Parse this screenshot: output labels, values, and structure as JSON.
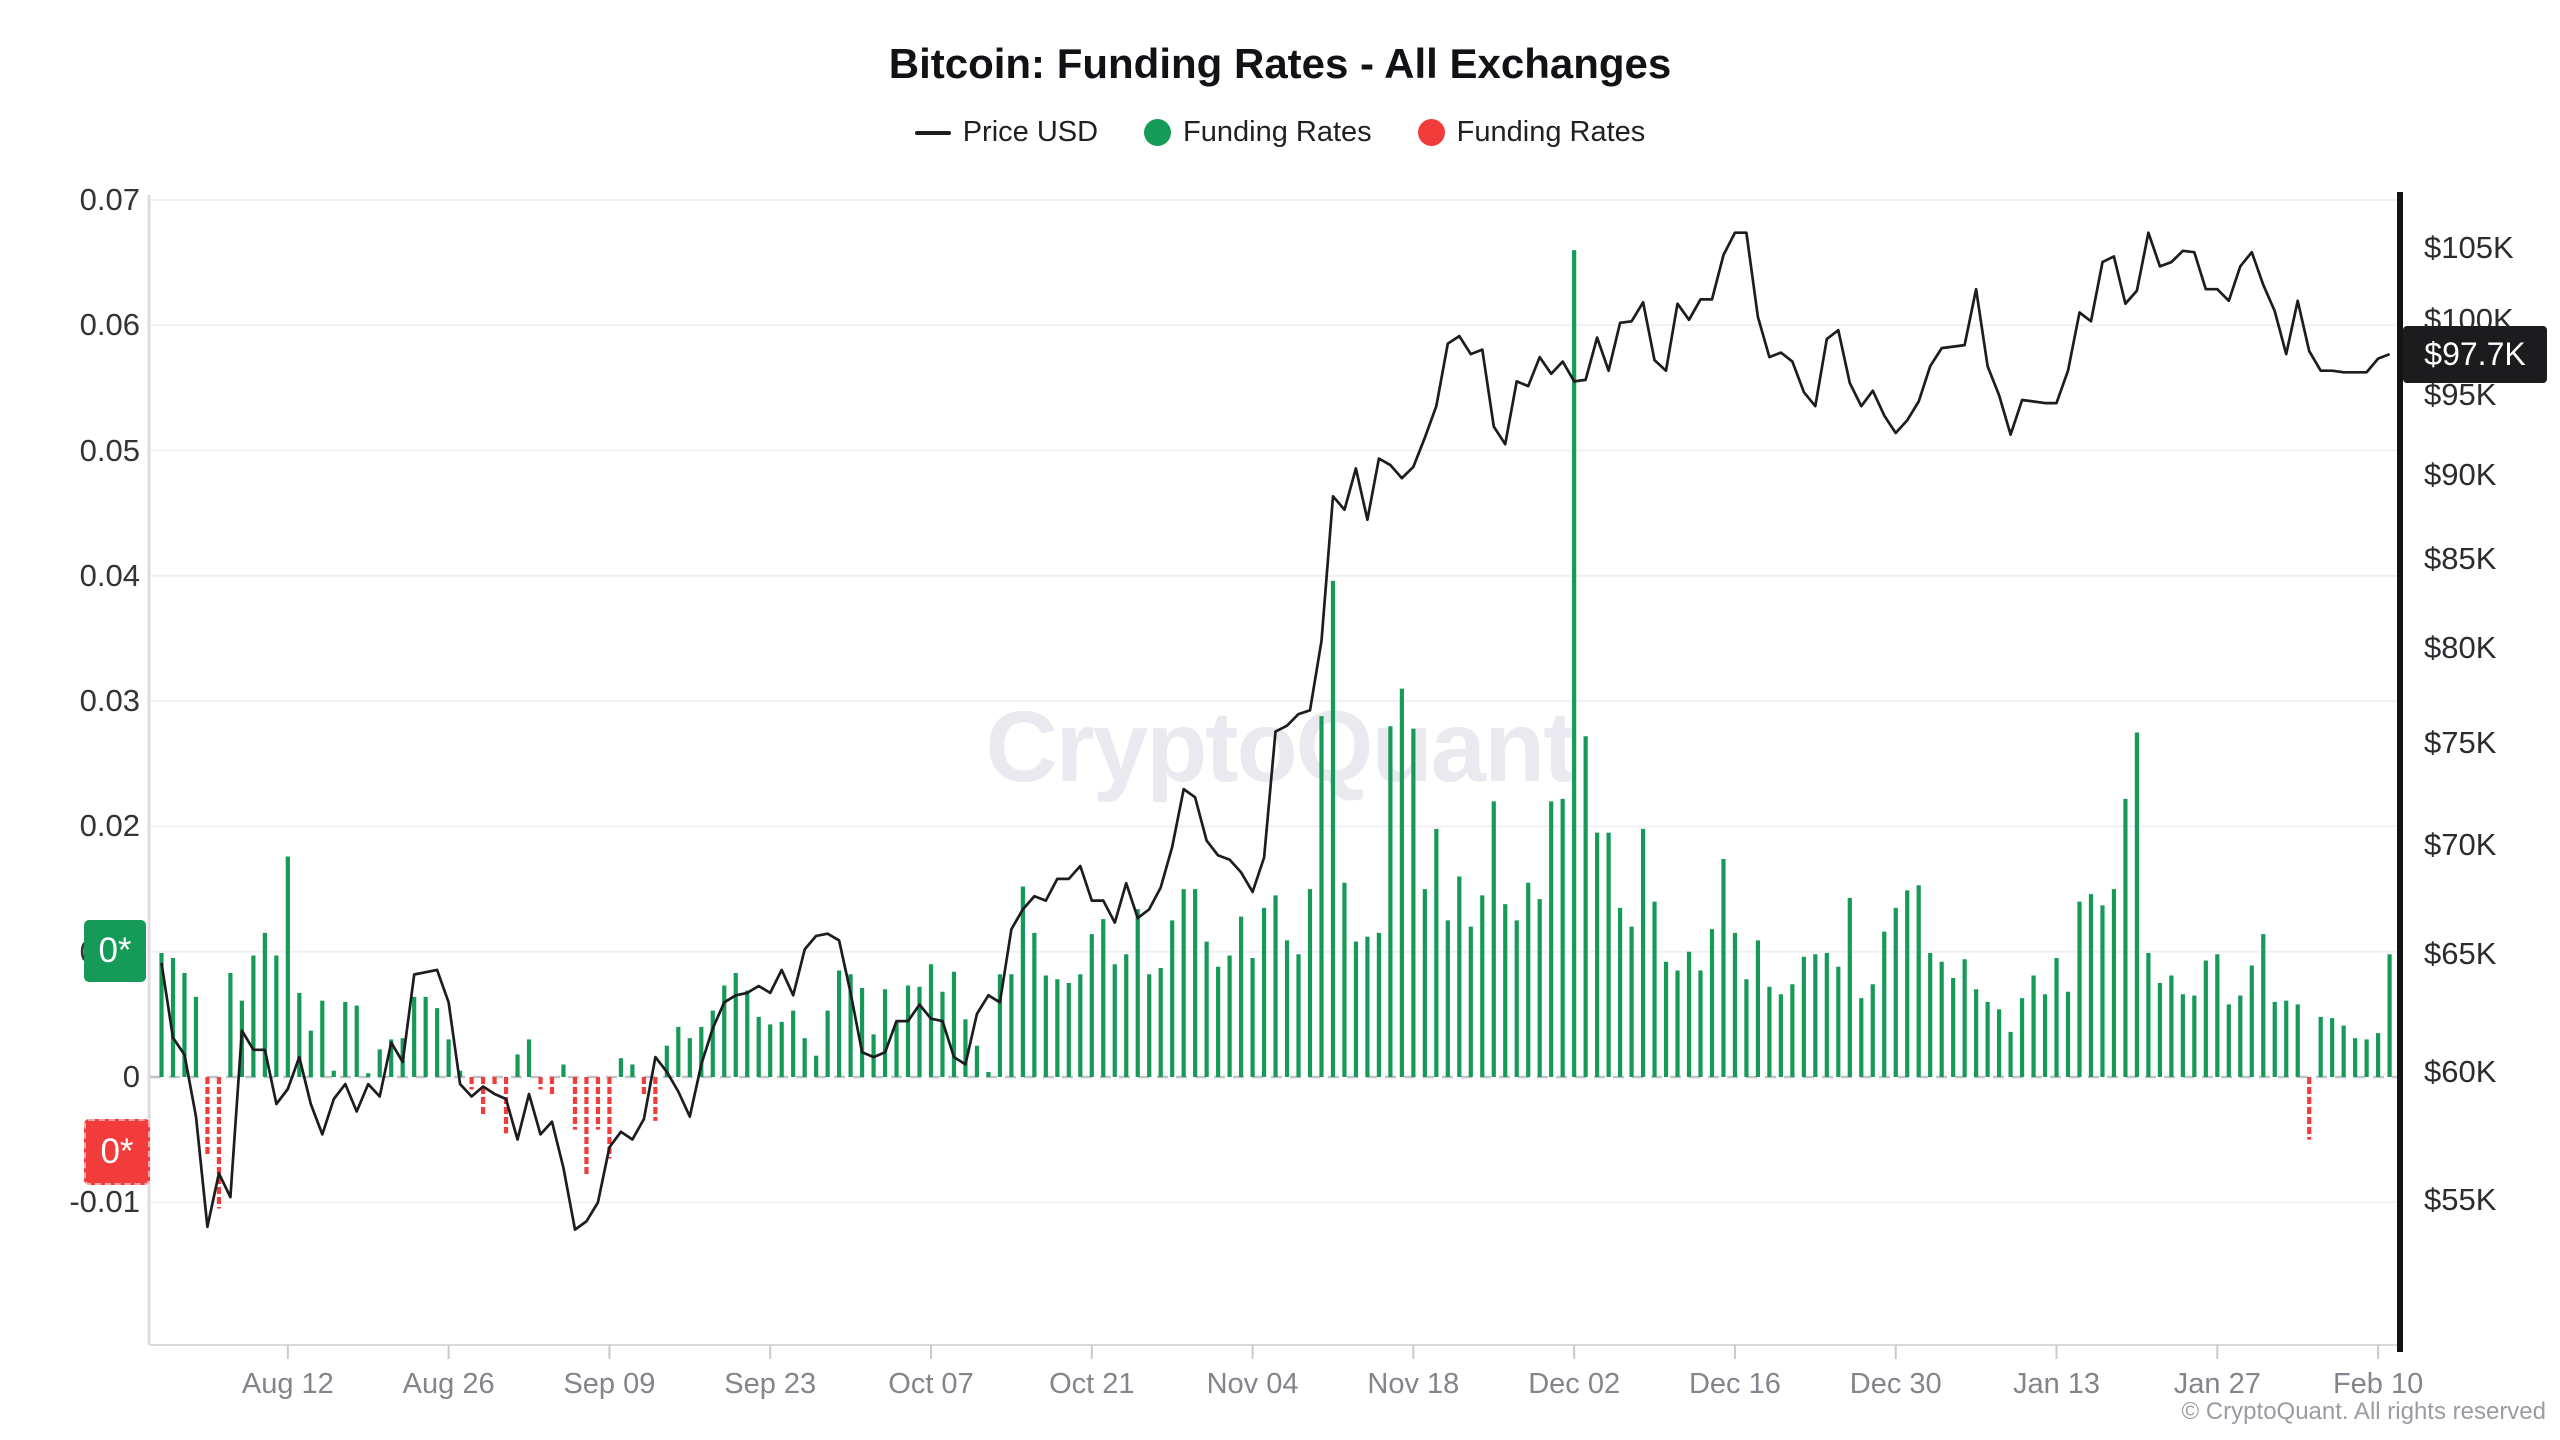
{
  "header": {
    "title": "Bitcoin: Funding Rates - All Exchanges",
    "legend": [
      {
        "label": "Price USD",
        "marker": "line",
        "color": "#1d1d1f"
      },
      {
        "label": "Funding Rates",
        "marker": "dot",
        "color": "#169a58"
      },
      {
        "label": "Funding Rates",
        "marker": "dot",
        "color": "#f23b3b"
      }
    ]
  },
  "watermark": "CryptoQuant",
  "footer": {
    "copyright": "© CryptoQuant. All rights reserved"
  },
  "badges": {
    "funding_positive": "0*",
    "funding_negative": "0*",
    "price_last": "$97.7K"
  },
  "chart_data": {
    "type": "mixed",
    "title": "Bitcoin: Funding Rates - All Exchanges",
    "start_date": "2024-08-01",
    "frequency": "daily",
    "grid": "horizontal",
    "legend_position": "top-center",
    "x_ticks": {
      "labels": [
        "Aug 12",
        "Aug 26",
        "Sep 09",
        "Sep 23",
        "Oct 07",
        "Oct 21",
        "Nov 04",
        "Nov 18",
        "Dec 02",
        "Dec 16",
        "Dec 30",
        "Jan 13",
        "Jan 27",
        "Feb 10"
      ],
      "day_indices": [
        11,
        25,
        39,
        53,
        67,
        81,
        95,
        109,
        123,
        137,
        151,
        165,
        179,
        193
      ]
    },
    "y_left": {
      "label": "Funding Rates",
      "scale": "linear",
      "ticks": [
        0.07,
        0.06,
        0.05,
        0.04,
        0.03,
        0.02,
        0.01,
        0,
        -0.01
      ],
      "tick_labels": [
        "0.07",
        "0.06",
        "0.05",
        "0.04",
        "0.03",
        "0.02",
        "0.01",
        "0",
        "-0.01"
      ],
      "range": [
        -0.0214,
        0.0704
      ]
    },
    "y_right": {
      "label": "Price USD",
      "scale": "log",
      "tick_values_k": [
        105,
        100,
        95,
        90,
        85,
        80,
        75,
        70,
        65,
        60,
        55
      ],
      "tick_labels": [
        "$105K",
        "$100K",
        "$95K",
        "$90K",
        "$85K",
        "$80K",
        "$75K",
        "$70K",
        "$65K",
        "$60K",
        "$55K"
      ],
      "range_k": [
        50.7,
        108.6
      ]
    },
    "series": [
      {
        "name": "Price USD",
        "type": "line",
        "axis": "right",
        "color": "#1d1d1f",
        "last_value_label": "$97.7K",
        "values_usd_k": [
          64.6,
          61.4,
          60.7,
          58.2,
          54.0,
          56.0,
          55.1,
          61.7,
          60.9,
          60.9,
          58.7,
          59.3,
          60.6,
          58.7,
          57.5,
          58.9,
          59.5,
          58.4,
          59.5,
          59.0,
          61.2,
          60.4,
          64.1,
          64.2,
          64.3,
          62.9,
          59.5,
          59.0,
          59.4,
          59.1,
          58.9,
          57.3,
          59.1,
          57.5,
          58.0,
          56.2,
          53.9,
          54.2,
          54.9,
          57.0,
          57.6,
          57.3,
          58.1,
          60.6,
          60.0,
          59.2,
          58.2,
          60.3,
          61.8,
          62.9,
          63.2,
          63.3,
          63.6,
          63.3,
          64.3,
          63.2,
          65.2,
          65.8,
          65.9,
          65.6,
          63.3,
          60.8,
          60.6,
          60.8,
          62.1,
          62.1,
          62.8,
          62.2,
          62.1,
          60.6,
          60.3,
          62.4,
          63.2,
          62.9,
          66.1,
          67.0,
          67.6,
          67.4,
          68.4,
          68.4,
          69.0,
          67.4,
          67.4,
          66.4,
          68.2,
          66.6,
          67.0,
          68.0,
          69.9,
          72.7,
          72.3,
          70.2,
          69.5,
          69.3,
          68.7,
          67.8,
          69.4,
          75.6,
          75.9,
          76.5,
          76.7,
          80.4,
          88.7,
          87.9,
          90.4,
          87.3,
          91.0,
          90.6,
          89.8,
          90.5,
          92.3,
          94.3,
          98.4,
          98.9,
          97.7,
          98.0,
          93.0,
          91.9,
          95.9,
          95.6,
          97.5,
          96.4,
          97.2,
          95.9,
          96.0,
          98.8,
          96.6,
          99.8,
          99.9,
          101.2,
          97.3,
          96.6,
          101.1,
          100.0,
          101.4,
          101.4,
          104.5,
          106.1,
          106.1,
          100.2,
          97.5,
          97.8,
          97.2,
          95.2,
          94.3,
          98.7,
          99.3,
          95.8,
          94.3,
          95.3,
          93.7,
          92.6,
          93.4,
          94.6,
          96.9,
          98.1,
          98.2,
          98.3,
          102.1,
          96.9,
          95.0,
          92.5,
          94.7,
          94.6,
          94.5,
          94.5,
          96.6,
          100.5,
          99.9,
          104.0,
          104.4,
          101.1,
          102.0,
          106.1,
          103.7,
          104.0,
          104.8,
          104.7,
          102.1,
          102.1,
          101.3,
          103.7,
          104.7,
          102.4,
          100.6,
          97.7,
          101.3,
          97.9,
          96.6,
          96.6,
          96.5,
          96.5,
          96.5,
          97.4,
          97.7
        ]
      },
      {
        "name": "Funding Rates",
        "type": "bar",
        "axis": "left",
        "color_positive": "#169a58",
        "color_negative": "#f23b3b",
        "values": [
          0.0099,
          0.0095,
          0.0083,
          0.0064,
          -0.0064,
          -0.0105,
          0.0083,
          0.0061,
          0.0097,
          0.0115,
          0.0097,
          0.0176,
          0.0067,
          0.0037,
          0.0061,
          0.0005,
          0.006,
          0.0057,
          0.0003,
          0.0022,
          0.003,
          0.0031,
          0.0064,
          0.0064,
          0.0055,
          0.003,
          0.0005,
          -0.001,
          -0.003,
          -0.0008,
          -0.0045,
          0.0018,
          0.003,
          -0.001,
          -0.0015,
          0.001,
          -0.0042,
          -0.0079,
          -0.0042,
          -0.0065,
          0.0015,
          0.001,
          -0.0015,
          -0.0035,
          0.0025,
          0.004,
          0.0031,
          0.004,
          0.0053,
          0.0073,
          0.0083,
          0.0069,
          0.0048,
          0.0042,
          0.0044,
          0.0053,
          0.0031,
          0.0017,
          0.0053,
          0.0085,
          0.0082,
          0.0071,
          0.0034,
          0.007,
          0.0044,
          0.0073,
          0.0072,
          0.009,
          0.0068,
          0.0084,
          0.0046,
          0.0025,
          0.0004,
          0.0082,
          0.0082,
          0.0152,
          0.0115,
          0.0081,
          0.0078,
          0.0075,
          0.0082,
          0.0114,
          0.0126,
          0.009,
          0.0098,
          0.0134,
          0.0082,
          0.0087,
          0.0125,
          0.015,
          0.015,
          0.0108,
          0.0088,
          0.0097,
          0.0128,
          0.0095,
          0.0135,
          0.0145,
          0.0109,
          0.0098,
          0.015,
          0.0288,
          0.0396,
          0.0155,
          0.0108,
          0.0112,
          0.0115,
          0.028,
          0.031,
          0.0278,
          0.015,
          0.0198,
          0.0125,
          0.016,
          0.012,
          0.0145,
          0.022,
          0.0138,
          0.0125,
          0.0155,
          0.0142,
          0.022,
          0.0222,
          0.066,
          0.0272,
          0.0195,
          0.0195,
          0.0135,
          0.012,
          0.0198,
          0.014,
          0.0092,
          0.0085,
          0.01,
          0.0085,
          0.0118,
          0.0174,
          0.0115,
          0.0078,
          0.0109,
          0.0072,
          0.0066,
          0.0074,
          0.0096,
          0.0098,
          0.0099,
          0.0088,
          0.0143,
          0.0063,
          0.0074,
          0.0116,
          0.0135,
          0.0149,
          0.0153,
          0.0099,
          0.0092,
          0.0079,
          0.0094,
          0.007,
          0.006,
          0.0054,
          0.0036,
          0.0063,
          0.0081,
          0.0066,
          0.0095,
          0.0068,
          0.014,
          0.0146,
          0.0137,
          0.015,
          0.0222,
          0.0275,
          0.0099,
          0.0075,
          0.0081,
          0.0066,
          0.0065,
          0.0093,
          0.0098,
          0.0058,
          0.0065,
          0.0089,
          0.0114,
          0.006,
          0.0061,
          0.0058,
          -0.005,
          0.0048,
          0.0047,
          0.0041,
          0.0031,
          0.003,
          0.0035,
          0.0098
        ]
      }
    ]
  }
}
